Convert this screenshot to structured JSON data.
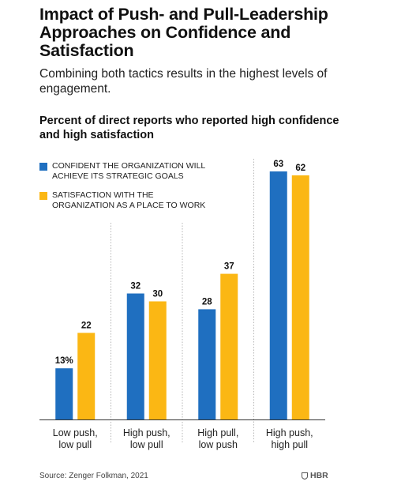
{
  "header": {
    "title": "Impact of Push- and Pull-Leadership Approaches on Confidence and Satisfaction",
    "subtitle": "Combining both tactics results in the highest levels of engagement."
  },
  "chart_heading": "Percent of direct reports who reported high confidence and high satisfaction",
  "legend": [
    {
      "label": "CONFIDENT THE ORGANIZATION WILL ACHIEVE ITS STRATEGIC GOALS",
      "color": "#1f6fc0"
    },
    {
      "label": "SATISFACTION WITH THE ORGANIZATION AS A PLACE TO WORK",
      "color": "#fbb714"
    }
  ],
  "chart_data": {
    "type": "bar",
    "categories": [
      [
        "Low push,",
        "low pull"
      ],
      [
        "High push,",
        "low pull"
      ],
      [
        "High pull,",
        "low push"
      ],
      [
        "High push,",
        "high pull"
      ]
    ],
    "series": [
      {
        "name": "CONFIDENT THE ORGANIZATION WILL ACHIEVE ITS STRATEGIC GOALS",
        "values": [
          13,
          32,
          28,
          63
        ],
        "labels": [
          "13%",
          "32",
          "28",
          "63"
        ],
        "color": "#1f6fc0"
      },
      {
        "name": "SATISFACTION WITH THE ORGANIZATION AS A PLACE TO WORK",
        "values": [
          22,
          30,
          37,
          62
        ],
        "labels": [
          "22",
          "30",
          "37",
          "62"
        ],
        "color": "#fbb714"
      }
    ],
    "ylim": [
      0,
      63
    ],
    "grid": false,
    "separators": "dotted"
  },
  "footer": {
    "source": "Source: Zenger Folkman, 2021",
    "brand": "HBR"
  }
}
